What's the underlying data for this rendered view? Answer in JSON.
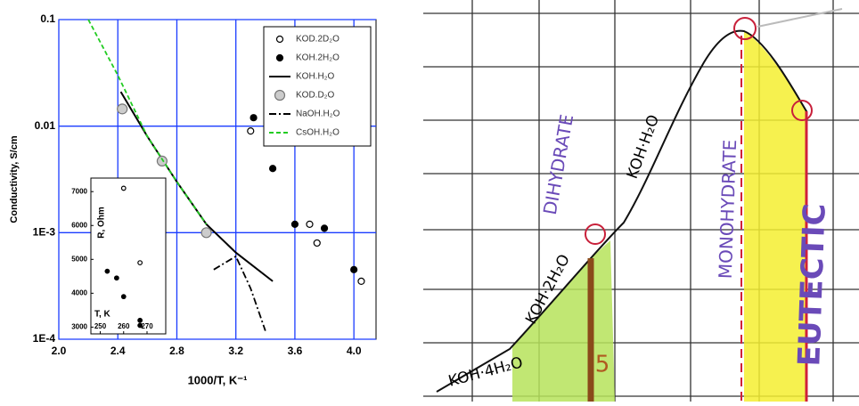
{
  "chart_data": [
    {
      "type": "line",
      "yscale": "log",
      "xlabel": "1000/T, K⁻¹",
      "ylabel": "Conductivity, S/cm",
      "xlim": [
        2.0,
        4.15
      ],
      "xticks": [
        {
          "value": 2.0,
          "label": "2.0"
        },
        2.4,
        2.8,
        3.2,
        3.6,
        {
          "value": 4.0,
          "label": "4.0"
        }
      ],
      "ylim": [
        0.0001,
        0.1
      ],
      "yticks": [
        {
          "value": 0.0001,
          "label": "1E-4"
        },
        {
          "value": 0.001,
          "label": "1E-3"
        },
        0.01,
        0.1
      ],
      "grid": true,
      "grid_color": "#1a3cff",
      "legend": "upper right",
      "series": [
        {
          "name": "KOD.2D₂O",
          "style": "open-circle",
          "color": "#000000",
          "x": [
            3.3,
            3.7,
            3.75,
            4.05
          ],
          "values": [
            0.009,
            0.0012,
            0.0008,
            0.00035
          ]
        },
        {
          "name": "KOH.2H₂O",
          "style": "filled-circle",
          "color": "#000000",
          "x": [
            3.32,
            3.45,
            3.6,
            3.8,
            4.0
          ],
          "values": [
            0.012,
            0.004,
            0.0012,
            0.0011,
            0.00045
          ]
        },
        {
          "name": "KOH.H₂O",
          "style": "solid",
          "color": "#000000",
          "x": [
            2.42,
            2.6,
            2.8,
            3.0,
            3.2,
            3.45
          ],
          "values": [
            0.021,
            0.008,
            0.003,
            0.0012,
            0.00065,
            0.00035
          ]
        },
        {
          "name": "KOD.D₂O",
          "style": "grey-circle",
          "color": "#999999",
          "x": [
            2.43,
            2.7,
            3.0
          ],
          "values": [
            0.0145,
            0.0047,
            0.001
          ]
        },
        {
          "name": "NaOH.H₂O",
          "style": "dashdot",
          "color": "#000000",
          "x": [
            3.05,
            3.2,
            3.3,
            3.4
          ],
          "values": [
            0.00045,
            0.0006,
            0.0003,
            0.00012
          ]
        },
        {
          "name": "CsOH.H₂O",
          "style": "dashed",
          "color": "#22cc22",
          "x": [
            2.2,
            2.4,
            2.6,
            2.8,
            3.0
          ],
          "values": [
            0.1,
            0.03,
            0.008,
            0.003,
            0.0012
          ]
        }
      ]
    },
    {
      "type": "scatter",
      "xlabel": "T, K",
      "ylabel": "R, Ohm",
      "xlim": [
        246,
        278
      ],
      "xticks": [
        250,
        260,
        270
      ],
      "ylim": [
        2800,
        7400
      ],
      "yticks": [
        3000,
        4000,
        5000,
        6000,
        7000
      ],
      "series": [
        {
          "style": "open-circle",
          "color": "#000000",
          "x": [
            260,
            267
          ],
          "values": [
            7100,
            4900
          ]
        },
        {
          "style": "filled-circle",
          "color": "#000000",
          "x": [
            253,
            257,
            260,
            267,
            267
          ],
          "values": [
            4650,
            4450,
            3900,
            3200,
            3050
          ]
        }
      ]
    }
  ],
  "diagram": {
    "labels": [
      "KOH·4H₂O",
      "KOH·2H₂O",
      "DIHYDRATE",
      "KOH·H₂O",
      "MONOHYDRATE",
      "EUTECTIC",
      "5"
    ]
  }
}
